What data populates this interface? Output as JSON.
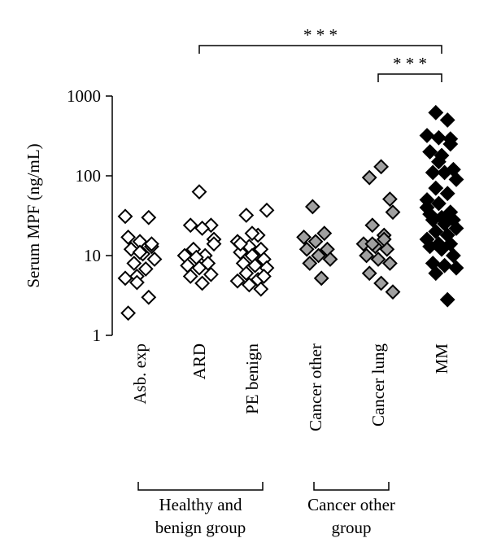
{
  "chart_data": {
    "type": "strip",
    "y_label": "Serum MPF (ng/mL)",
    "log_y": true,
    "ylim": [
      1,
      1000
    ],
    "yticks": [
      1,
      10,
      100,
      1000
    ],
    "categories": [
      "Asb. exp",
      "ARD",
      "PE benign",
      "Cancer other",
      "Cancer lung",
      "MM"
    ],
    "colors": [
      "#ffffff",
      "#ffffff",
      "#ffffff",
      "#a0a0a0",
      "#a0a0a0",
      "#000000"
    ],
    "values": [
      [
        31,
        5.5,
        30,
        17,
        15,
        13,
        12,
        10.5,
        9,
        8,
        6.8,
        5.2,
        4.6,
        3,
        1.9,
        11,
        14
      ],
      [
        63,
        24,
        24,
        22,
        16,
        12,
        10,
        10,
        9.5,
        8,
        7.5,
        7,
        5.8,
        5.5,
        4.5,
        14
      ],
      [
        37,
        32,
        18,
        15,
        13,
        12,
        11,
        10,
        9,
        8,
        7.5,
        7,
        6,
        5,
        4.8,
        4.3,
        3.8,
        14,
        19,
        5.5
      ],
      [
        41,
        19,
        17,
        15,
        12,
        12,
        10,
        9,
        8,
        5.2
      ],
      [
        51,
        95,
        130,
        35,
        24,
        18,
        14,
        13,
        12,
        10,
        9,
        8,
        6,
        4.5,
        3.5,
        14,
        16
      ],
      [
        620,
        500,
        320,
        300,
        290,
        200,
        180,
        120,
        110,
        110,
        90,
        70,
        60,
        50,
        45,
        35,
        33,
        30,
        28,
        28,
        25,
        22,
        20,
        18,
        16,
        14,
        14,
        13,
        12,
        10,
        8,
        7.5,
        7,
        6,
        2.8,
        40,
        150,
        250
      ]
    ],
    "comparisons": [
      {
        "from": 1,
        "to": 5,
        "label": "* * *"
      },
      {
        "from": 4,
        "to": 5,
        "label": "* * *"
      }
    ],
    "groups": [
      {
        "from": 0,
        "to": 2,
        "lines": [
          "Healthy and",
          "benign group"
        ]
      },
      {
        "from": 3,
        "to": 4,
        "lines": [
          "Cancer other",
          "group"
        ]
      }
    ]
  }
}
